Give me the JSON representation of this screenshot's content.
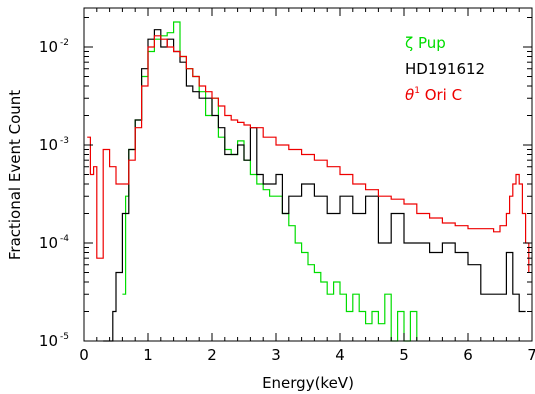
{
  "chart_data": {
    "type": "line",
    "title": "",
    "xlabel": "Energy(keV)",
    "ylabel": "Fractional Event Count",
    "xlim": [
      0,
      7
    ],
    "ylim": [
      1e-05,
      0.025
    ],
    "yscale": "log",
    "x_ticks": [
      0,
      1,
      2,
      3,
      4,
      5,
      6,
      7
    ],
    "x_tick_labels": [
      "0",
      "1",
      "2",
      "3",
      "4",
      "5",
      "6",
      "7"
    ],
    "y_ticks": [
      1e-05,
      0.0001,
      0.001,
      0.01
    ],
    "y_tick_labels": [
      {
        "base": "10",
        "exp": "-5"
      },
      {
        "base": "10",
        "exp": "-4"
      },
      {
        "base": "10",
        "exp": "-3"
      },
      {
        "base": "10",
        "exp": "-2"
      }
    ],
    "grid": false,
    "legend_position": "top-right",
    "series": [
      {
        "name": "ζ Pup",
        "color": "#00dd00",
        "x": [
          0.6,
          0.65,
          0.7,
          0.8,
          0.9,
          1.0,
          1.1,
          1.2,
          1.3,
          1.4,
          1.5,
          1.6,
          1.7,
          1.8,
          1.9,
          2.0,
          2.1,
          2.2,
          2.3,
          2.4,
          2.5,
          2.6,
          2.7,
          2.8,
          2.9,
          3.0,
          3.1,
          3.2,
          3.3,
          3.4,
          3.5,
          3.6,
          3.7,
          3.8,
          3.9,
          4.0,
          4.1,
          4.2,
          4.3,
          4.4,
          4.5,
          4.6,
          4.7,
          4.8,
          4.9,
          5.0,
          5.1,
          5.2
        ],
        "y": [
          3e-05,
          0.0003,
          0.0009,
          0.0018,
          0.005,
          0.009,
          0.012,
          0.013,
          0.014,
          0.018,
          0.008,
          0.006,
          0.005,
          0.0035,
          0.002,
          0.003,
          0.0012,
          0.0009,
          0.0008,
          0.0011,
          0.0007,
          0.0005,
          0.0004,
          0.00035,
          0.0003,
          0.0003,
          0.0002,
          0.00015,
          0.0001,
          8e-05,
          6e-05,
          5e-05,
          4e-05,
          3e-05,
          4e-05,
          3e-05,
          2e-05,
          3e-05,
          2e-05,
          1.5e-05,
          2e-05,
          1.5e-05,
          3e-05,
          1e-05,
          2e-05,
          1e-05,
          2e-05,
          1e-05
        ]
      },
      {
        "name": "HD191612",
        "color": "#000000",
        "x": [
          0.3,
          0.35,
          0.4,
          0.45,
          0.5,
          0.6,
          0.7,
          0.8,
          0.9,
          1.0,
          1.1,
          1.2,
          1.3,
          1.4,
          1.5,
          1.6,
          1.7,
          1.8,
          1.9,
          2.0,
          2.1,
          2.2,
          2.3,
          2.4,
          2.5,
          2.6,
          2.7,
          2.8,
          2.9,
          3.0,
          3.1,
          3.2,
          3.4,
          3.6,
          3.8,
          4.0,
          4.2,
          4.4,
          4.6,
          4.8,
          5.0,
          5.2,
          5.4,
          5.6,
          5.8,
          6.0,
          6.2,
          6.4,
          6.6,
          6.7,
          6.8,
          6.9
        ],
        "y": [
          1e-05,
          1e-05,
          1e-05,
          2e-05,
          5e-05,
          0.0002,
          0.0009,
          0.0018,
          0.006,
          0.012,
          0.015,
          0.01,
          0.012,
          0.009,
          0.007,
          0.004,
          0.0035,
          0.003,
          0.003,
          0.002,
          0.0015,
          0.0008,
          0.0008,
          0.001,
          0.0007,
          0.0015,
          0.0005,
          0.0004,
          0.0004,
          0.0005,
          0.0002,
          0.0003,
          0.0004,
          0.0003,
          0.0002,
          0.0003,
          0.0002,
          0.0003,
          0.0001,
          0.0002,
          0.0001,
          0.0001,
          8e-05,
          0.0001,
          8e-05,
          6e-05,
          3e-05,
          3e-05,
          8e-05,
          3e-05,
          2e-05,
          2e-05
        ]
      },
      {
        "name": "θ¹ Ori C",
        "color": "#ee0000",
        "x": [
          0.05,
          0.1,
          0.15,
          0.2,
          0.3,
          0.4,
          0.5,
          0.6,
          0.7,
          0.8,
          0.9,
          1.0,
          1.1,
          1.2,
          1.3,
          1.4,
          1.5,
          1.6,
          1.7,
          1.8,
          1.9,
          2.0,
          2.1,
          2.2,
          2.3,
          2.4,
          2.5,
          2.6,
          2.8,
          3.0,
          3.2,
          3.4,
          3.6,
          3.8,
          4.0,
          4.2,
          4.4,
          4.6,
          4.8,
          5.0,
          5.2,
          5.4,
          5.6,
          5.8,
          6.0,
          6.2,
          6.4,
          6.5,
          6.6,
          6.65,
          6.7,
          6.75,
          6.8,
          6.85,
          6.9,
          6.95
        ],
        "y": [
          0.0012,
          0.0005,
          0.0006,
          7e-05,
          0.0009,
          0.0006,
          0.0004,
          0.0004,
          0.0007,
          0.0015,
          0.004,
          0.01,
          0.013,
          0.012,
          0.01,
          0.009,
          0.008,
          0.006,
          0.005,
          0.004,
          0.0035,
          0.003,
          0.0025,
          0.002,
          0.0018,
          0.0017,
          0.0016,
          0.0015,
          0.0012,
          0.001,
          0.0009,
          0.0008,
          0.0007,
          0.0006,
          0.0005,
          0.0004,
          0.00035,
          0.0003,
          0.00028,
          0.00025,
          0.0002,
          0.00018,
          0.00016,
          0.00015,
          0.00014,
          0.00014,
          0.00013,
          0.00015,
          0.0002,
          0.0003,
          0.0004,
          0.0005,
          0.0004,
          0.0002,
          0.0001,
          5e-05
        ]
      }
    ],
    "legend_labels": {
      "zeta_pup": {
        "symbol": "ζ",
        "text": " Pup"
      },
      "hd191612": {
        "text": "HD191612"
      },
      "theta_ori": {
        "symbol": "θ",
        "sup": "1",
        "text": " Ori C"
      }
    }
  }
}
